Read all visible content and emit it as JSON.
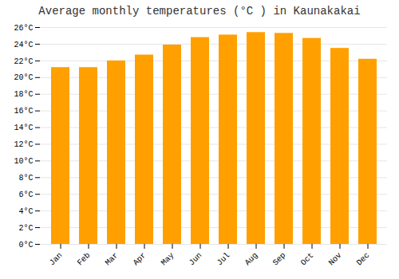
{
  "chart_data": {
    "type": "bar",
    "title": "Average monthly temperatures (°C ) in Kaunakakai",
    "categories": [
      "Jan",
      "Feb",
      "Mar",
      "Apr",
      "May",
      "Jun",
      "Jul",
      "Aug",
      "Sep",
      "Oct",
      "Nov",
      "Dec"
    ],
    "values": [
      21.2,
      21.2,
      22.0,
      22.7,
      23.9,
      24.8,
      25.1,
      25.4,
      25.3,
      24.7,
      23.5,
      22.2
    ],
    "color": "#FFA000",
    "ylim": [
      0,
      26
    ],
    "yticks": [
      {
        "value": 0,
        "label": "0°C"
      },
      {
        "value": 2,
        "label": "2°C"
      },
      {
        "value": 4,
        "label": "4°C"
      },
      {
        "value": 6,
        "label": "6°C"
      },
      {
        "value": 8,
        "label": "8°C"
      },
      {
        "value": 10,
        "label": "10°C"
      },
      {
        "value": 12,
        "label": "12°C"
      },
      {
        "value": 14,
        "label": "14°C"
      },
      {
        "value": 16,
        "label": "16°C"
      },
      {
        "value": 18,
        "label": "18°C"
      },
      {
        "value": 20,
        "label": "20°C"
      },
      {
        "value": 22,
        "label": "22°C"
      },
      {
        "value": 24,
        "label": "24°C"
      },
      {
        "value": 26,
        "label": "26°C"
      }
    ],
    "grid": true
  }
}
